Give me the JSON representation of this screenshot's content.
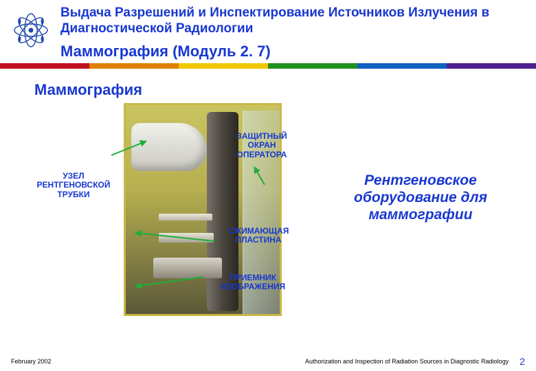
{
  "colors": {
    "title": "#1838d0",
    "label": "#1838d0",
    "caption": "#1838d0",
    "stripe": [
      "#c01020",
      "#e08000",
      "#f0c800",
      "#209020",
      "#1060c0",
      "#502090"
    ],
    "arrow": "#1fae3a",
    "logo": "#2048b0"
  },
  "header": {
    "title": "Выдача Разрешений и Инспектирование Источников Излучения в Диагностической Радиологии",
    "subtitle": "Маммография (Модуль 2. 7)"
  },
  "section_title": "Маммография",
  "labels": {
    "tube": "УЗЕЛ\nРЕНТГЕНОВСКОЙ\nТРУБКИ",
    "shield": "ЗАЩИТНЫЙ\nОКРАН\nОПЕРАТОРА",
    "plate": "СЖИМАЮЩАЯ\nПЛАСТИНА",
    "receiver": "ПРИЕМНИК\nИЗОБРАЖЕНИЯ"
  },
  "caption": "Рентгеновское оборудование для маммографии",
  "footer": {
    "date": "February 2002",
    "right": "Authorization and Inspection of Radiation Sources in Diagnostic Radiology",
    "page": "2"
  }
}
